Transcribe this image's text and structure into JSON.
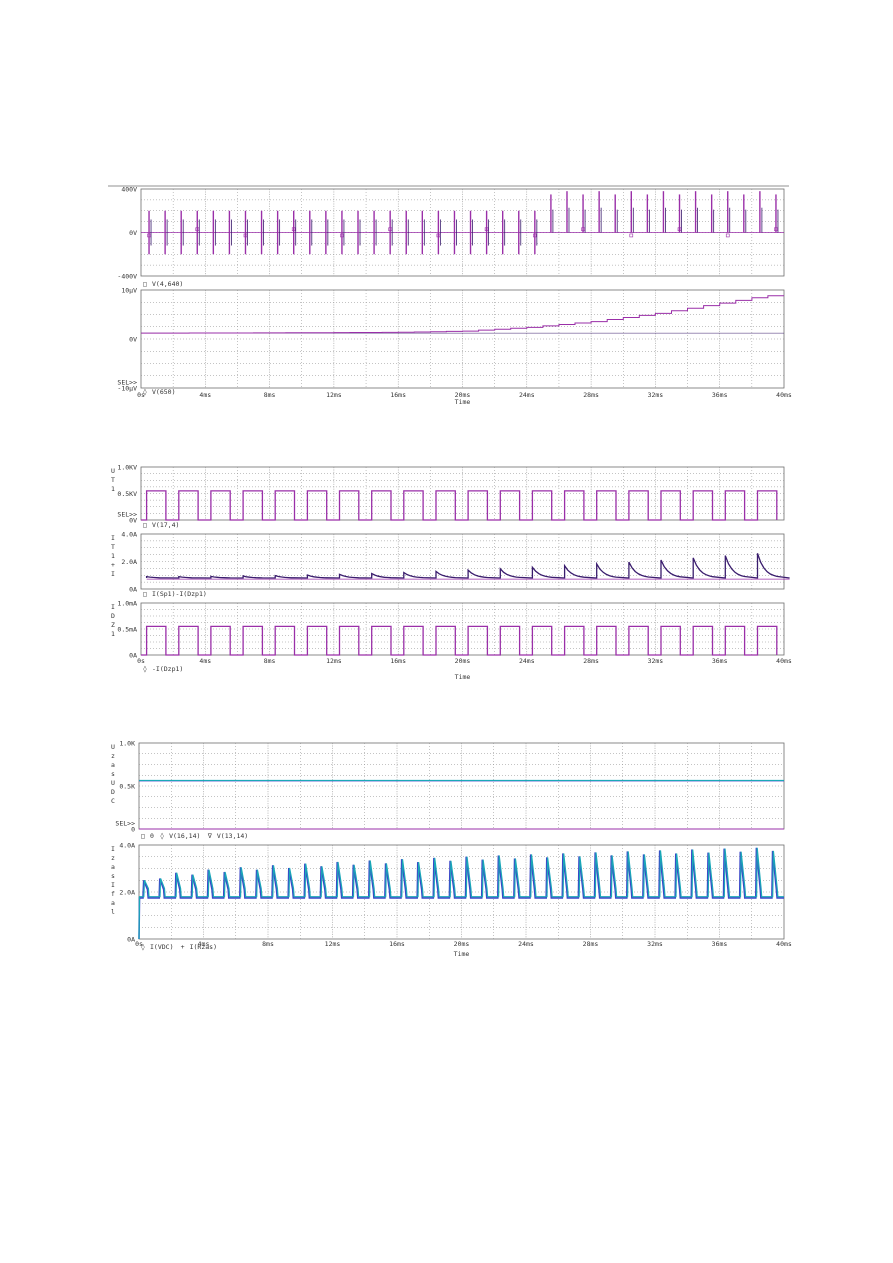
{
  "page": {
    "background": "#ffffff"
  },
  "colors": {
    "trace_purple": "#9a2fa8",
    "trace_dark": "#3a1d6e",
    "trace_cyan": "#1aa8b8",
    "trace_blue": "#3b46c8",
    "grid": "#8a8a8a",
    "frame": "#6e6e6e",
    "text": "#333333"
  },
  "figures": [
    {
      "x_axis": {
        "min": 0,
        "max": 40,
        "unit": "ms",
        "ticks": [
          "0s",
          "4ms",
          "8ms",
          "12ms",
          "16ms",
          "20ms",
          "24ms",
          "28ms",
          "32ms",
          "36ms",
          "40ms"
        ],
        "label": "Time"
      },
      "panels": [
        {
          "y_ticks": [
            "400V",
            "0V",
            "-400V"
          ],
          "y_labels": [],
          "legend": [
            "V(4,640)"
          ],
          "sel_marker": ""
        },
        {
          "y_ticks": [
            "10µV",
            "0V",
            "SEL>>",
            "-10µV"
          ],
          "y_labels": [],
          "legend": [
            "V(650)"
          ],
          "sel_marker": "SEL>>"
        }
      ]
    },
    {
      "x_axis": {
        "min": 0,
        "max": 40,
        "unit": "ms",
        "ticks": [
          "0s",
          "4ms",
          "8ms",
          "12ms",
          "16ms",
          "20ms",
          "24ms",
          "28ms",
          "32ms",
          "36ms",
          "40ms"
        ],
        "label": "Time"
      },
      "panels": [
        {
          "y_ticks": [
            "1.0KV",
            "0.5KV",
            "SEL>>",
            "0V"
          ],
          "y_labels": [
            "U",
            "T",
            "1"
          ],
          "legend": [
            "V(17,4)"
          ],
          "sel_marker": "SEL>>"
        },
        {
          "y_ticks": [
            "4.0A",
            "2.0A",
            "0A"
          ],
          "y_labels": [
            "I",
            "T",
            "1",
            "+",
            "I"
          ],
          "legend": [
            "I(Sp1)-I(Dzp1)"
          ],
          "sel_marker": ""
        },
        {
          "y_ticks": [
            "1.0mA",
            "0.5mA",
            "0A"
          ],
          "y_labels": [
            "I",
            "D",
            "Z",
            "1"
          ],
          "legend": [
            "-I(Dzp1)"
          ],
          "sel_marker": ""
        }
      ]
    },
    {
      "x_axis": {
        "min": 0,
        "max": 40,
        "unit": "ms",
        "ticks": [
          "0s",
          "4ms",
          "8ms",
          "12ms",
          "16ms",
          "20ms",
          "24ms",
          "28ms",
          "32ms",
          "36ms",
          "40ms"
        ],
        "label": "Time"
      },
      "panels": [
        {
          "y_ticks": [
            "1.0K",
            "0.5K",
            "SEL>>",
            "0"
          ],
          "y_labels": [
            "U",
            "z",
            "a",
            "s",
            "U",
            "D",
            "C"
          ],
          "legend": [
            "0",
            "V(16,14)",
            "V(13,14)"
          ],
          "sel_marker": "SEL>>"
        },
        {
          "y_ticks": [
            "4.0A",
            "2.0A",
            "0A"
          ],
          "y_labels": [
            "I",
            "z",
            "a",
            "s",
            "I",
            "f",
            "a",
            "l"
          ],
          "legend": [
            "I(VDC)",
            "I(Rzas)"
          ],
          "sel_marker": ""
        }
      ]
    }
  ],
  "chart_data": [
    {
      "type": "line",
      "x": {
        "min": 0,
        "max": 40,
        "unit": "ms"
      },
      "ylabel": "",
      "ylim": [
        -400,
        400
      ],
      "series": [
        {
          "name": "V(4,640)",
          "pulse_period_ms": 1.0,
          "amplitude_V": [
            -200,
            200
          ],
          "late_offset_after_ms": 25,
          "late_range_V": [
            0,
            380
          ]
        }
      ]
    },
    {
      "type": "line",
      "x": {
        "min": 0,
        "max": 40,
        "unit": "ms"
      },
      "ylim": [
        -10,
        10
      ],
      "y_unit": "µV",
      "series": [
        {
          "name": "V(650)",
          "points": [
            [
              0,
              0
            ],
            [
              8,
              0.05
            ],
            [
              16,
              0.2
            ],
            [
              20,
              0.5
            ],
            [
              24,
              1.4
            ],
            [
              28,
              2.8
            ],
            [
              32,
              4.8
            ],
            [
              36,
              7.3
            ],
            [
              38,
              8.6
            ],
            [
              40,
              9.6
            ]
          ]
        }
      ]
    },
    {
      "type": "line",
      "x": {
        "min": 0,
        "max": 40,
        "unit": "ms"
      },
      "ylim": [
        0,
        1000
      ],
      "y_unit": "V",
      "series": [
        {
          "name": "V(17,4)",
          "square_period_ms": 2.0,
          "duty": 0.6,
          "high_V": 550,
          "low_V": 0
        }
      ]
    },
    {
      "type": "line",
      "x": {
        "min": 0,
        "max": 40,
        "unit": "ms"
      },
      "ylim": [
        0,
        4
      ],
      "y_unit": "A",
      "series": [
        {
          "name": "I(Sp1)-I(Dzp1)",
          "period_ms": 2.0,
          "base_A": 0.8,
          "peak_A_start": 0.9,
          "peak_A_end": 2.6
        }
      ]
    },
    {
      "type": "line",
      "x": {
        "min": 0,
        "max": 40,
        "unit": "ms"
      },
      "ylim": [
        0,
        1.0
      ],
      "y_unit": "mA",
      "series": [
        {
          "name": "-I(Dzp1)",
          "square_period_ms": 2.0,
          "duty": 0.6,
          "high_mA": 0.55,
          "low_mA": 0
        }
      ]
    },
    {
      "type": "line",
      "x": {
        "min": 0,
        "max": 40,
        "unit": "ms"
      },
      "ylim": [
        0,
        1000
      ],
      "y_unit": "V",
      "series": [
        {
          "name": "0",
          "constant": 0
        },
        {
          "name": "V(16,14)",
          "constant": 560
        },
        {
          "name": "V(13,14)",
          "constant": 565
        }
      ]
    },
    {
      "type": "line",
      "x": {
        "min": 0,
        "max": 40,
        "unit": "ms"
      },
      "ylim": [
        0,
        4
      ],
      "y_unit": "A",
      "series": [
        {
          "name": "I(VDC)",
          "period_ms": 1.0,
          "base_A": 1.75,
          "peak_A_start": 2.5,
          "peak_A_end": 3.9
        },
        {
          "name": "I(Rzas)",
          "period_ms": 1.0,
          "base_A": 1.8,
          "peak_A_start": 2.5,
          "peak_A_end": 3.9
        }
      ]
    }
  ]
}
